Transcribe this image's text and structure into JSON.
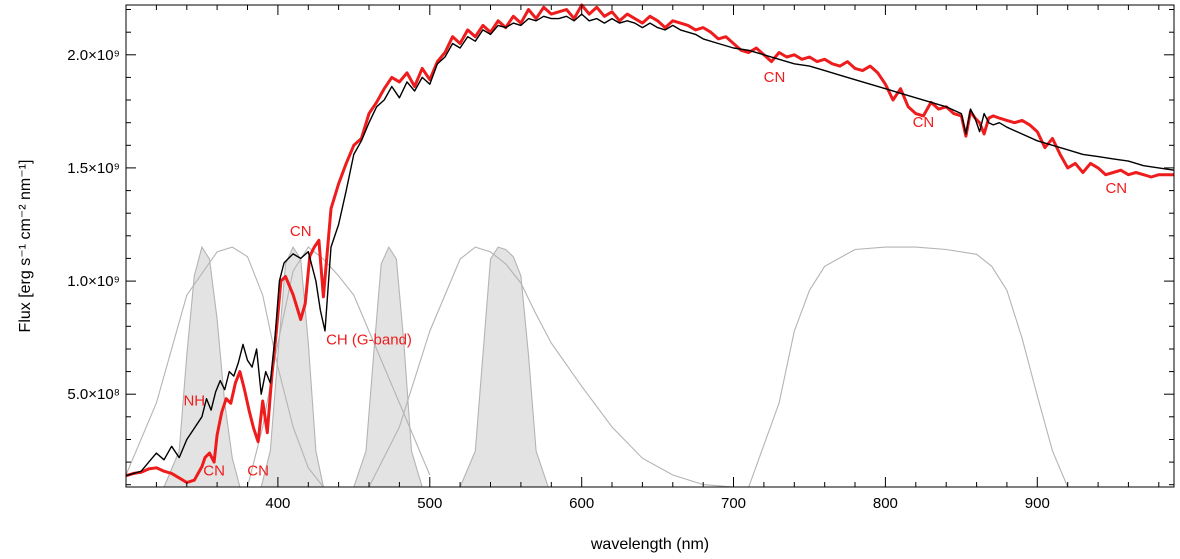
{
  "chart_data": {
    "type": "line",
    "title": "",
    "xlabel": "wavelength (nm)",
    "ylabel": "Flux [erg s⁻¹ cm⁻² nm⁻¹]",
    "xlim": [
      300,
      990
    ],
    "ylim": [
      90000000,
      2220000000
    ],
    "grid": false,
    "xticks": [
      {
        "value": 400,
        "label": "400"
      },
      {
        "value": 500,
        "label": "500"
      },
      {
        "value": 600,
        "label": "600"
      },
      {
        "value": 700,
        "label": "700"
      },
      {
        "value": 800,
        "label": "800"
      },
      {
        "value": 900,
        "label": "900"
      }
    ],
    "yticks": [
      {
        "value": 500000000,
        "label": "5.0×10⁸"
      },
      {
        "value": 1000000000,
        "label": "1.0×10⁹"
      },
      {
        "value": 1500000000,
        "label": "1.5×10⁹"
      },
      {
        "value": 2000000000,
        "label": "2.0×10⁹"
      }
    ],
    "colors": {
      "red": "#ee1c1c",
      "black": "#000000",
      "filter_line": "#b4b4b4",
      "filter_fill": "#e3e3e3"
    },
    "series": [
      {
        "color": "#ee1c1c",
        "x": [
          300,
          305,
          310,
          315,
          320,
          325,
          330,
          335,
          340,
          345,
          350,
          352,
          355,
          358,
          360,
          363,
          366,
          369,
          372,
          375,
          378,
          381,
          384,
          387,
          390,
          393,
          396,
          399,
          402,
          405,
          410,
          415,
          418,
          421,
          424,
          427,
          430,
          435,
          440,
          445,
          450,
          455,
          460,
          465,
          470,
          475,
          480,
          485,
          490,
          495,
          500,
          505,
          510,
          515,
          520,
          525,
          530,
          535,
          540,
          545,
          550,
          555,
          560,
          565,
          570,
          575,
          580,
          585,
          590,
          595,
          600,
          605,
          610,
          615,
          620,
          625,
          630,
          635,
          640,
          645,
          650,
          655,
          660,
          665,
          670,
          675,
          680,
          685,
          690,
          695,
          700,
          705,
          710,
          715,
          720,
          725,
          730,
          735,
          740,
          745,
          750,
          755,
          760,
          765,
          770,
          775,
          780,
          785,
          790,
          795,
          800,
          805,
          810,
          815,
          820,
          825,
          830,
          835,
          840,
          845,
          850,
          853,
          856,
          859,
          862,
          865,
          868,
          871,
          875,
          880,
          885,
          890,
          895,
          900,
          905,
          910,
          915,
          920,
          925,
          930,
          935,
          940,
          945,
          950,
          955,
          960,
          965,
          970,
          975,
          980,
          985,
          990
        ],
        "y": [
          140000000,
          150000000,
          155000000,
          170000000,
          175000000,
          160000000,
          150000000,
          130000000,
          110000000,
          120000000,
          180000000,
          220000000,
          240000000,
          200000000,
          320000000,
          420000000,
          480000000,
          460000000,
          550000000,
          600000000,
          520000000,
          430000000,
          350000000,
          290000000,
          470000000,
          330000000,
          580000000,
          780000000,
          1000000000,
          1020000000,
          940000000,
          830000000,
          900000000,
          1110000000,
          1150000000,
          1180000000,
          930000000,
          1320000000,
          1430000000,
          1520000000,
          1600000000,
          1630000000,
          1740000000,
          1790000000,
          1850000000,
          1900000000,
          1880000000,
          1920000000,
          1860000000,
          1940000000,
          1890000000,
          1970000000,
          2010000000,
          2080000000,
          2050000000,
          2110000000,
          2080000000,
          2130000000,
          2100000000,
          2150000000,
          2120000000,
          2170000000,
          2140000000,
          2200000000,
          2160000000,
          2210000000,
          2180000000,
          2190000000,
          2200000000,
          2160000000,
          2220000000,
          2180000000,
          2210000000,
          2170000000,
          2190000000,
          2150000000,
          2180000000,
          2160000000,
          2140000000,
          2170000000,
          2150000000,
          2120000000,
          2150000000,
          2140000000,
          2130000000,
          2110000000,
          2120000000,
          2100000000,
          2070000000,
          2080000000,
          2050000000,
          2020000000,
          2010000000,
          2030000000,
          2000000000,
          1970000000,
          2010000000,
          1990000000,
          2000000000,
          1980000000,
          1990000000,
          1970000000,
          1980000000,
          1960000000,
          1950000000,
          1970000000,
          1940000000,
          1930000000,
          1950000000,
          1920000000,
          1870000000,
          1800000000,
          1850000000,
          1770000000,
          1740000000,
          1730000000,
          1790000000,
          1760000000,
          1770000000,
          1740000000,
          1730000000,
          1640000000,
          1750000000,
          1720000000,
          1700000000,
          1650000000,
          1720000000,
          1730000000,
          1720000000,
          1710000000,
          1700000000,
          1710000000,
          1690000000,
          1660000000,
          1590000000,
          1630000000,
          1560000000,
          1500000000,
          1520000000,
          1480000000,
          1520000000,
          1500000000,
          1470000000,
          1480000000,
          1490000000,
          1470000000,
          1480000000,
          1470000000,
          1460000000,
          1470000000,
          1470000000,
          1470000000
        ]
      },
      {
        "color": "#000000",
        "x": [
          300,
          305,
          310,
          315,
          320,
          325,
          330,
          335,
          340,
          345,
          350,
          353,
          356,
          359,
          362,
          365,
          368,
          371,
          374,
          377,
          380,
          383,
          386,
          389,
          392,
          395,
          398,
          401,
          404,
          407,
          410,
          415,
          420,
          425,
          428,
          431,
          435,
          440,
          445,
          450,
          455,
          460,
          465,
          470,
          475,
          480,
          485,
          490,
          495,
          500,
          505,
          510,
          515,
          520,
          525,
          530,
          535,
          540,
          545,
          550,
          555,
          560,
          565,
          570,
          575,
          580,
          585,
          590,
          595,
          600,
          605,
          610,
          615,
          620,
          625,
          630,
          635,
          640,
          645,
          650,
          655,
          660,
          665,
          670,
          675,
          680,
          690,
          700,
          710,
          720,
          730,
          740,
          750,
          760,
          770,
          780,
          790,
          800,
          810,
          820,
          830,
          840,
          850,
          853,
          856,
          859,
          862,
          865,
          868,
          871,
          875,
          880,
          890,
          900,
          910,
          920,
          930,
          940,
          950,
          960,
          970,
          980,
          990
        ],
        "y": [
          140000000,
          150000000,
          160000000,
          200000000,
          240000000,
          210000000,
          270000000,
          220000000,
          300000000,
          350000000,
          400000000,
          480000000,
          430000000,
          510000000,
          560000000,
          520000000,
          600000000,
          580000000,
          640000000,
          720000000,
          650000000,
          620000000,
          700000000,
          500000000,
          600000000,
          550000000,
          740000000,
          1000000000,
          1080000000,
          1100000000,
          1120000000,
          1100000000,
          1130000000,
          1000000000,
          870000000,
          780000000,
          1150000000,
          1250000000,
          1400000000,
          1560000000,
          1620000000,
          1700000000,
          1770000000,
          1800000000,
          1860000000,
          1810000000,
          1880000000,
          1840000000,
          1900000000,
          1870000000,
          1960000000,
          1990000000,
          2050000000,
          2030000000,
          2080000000,
          2060000000,
          2110000000,
          2090000000,
          2130000000,
          2120000000,
          2140000000,
          2130000000,
          2160000000,
          2150000000,
          2170000000,
          2160000000,
          2160000000,
          2170000000,
          2150000000,
          2180000000,
          2150000000,
          2160000000,
          2140000000,
          2160000000,
          2140000000,
          2150000000,
          2140000000,
          2120000000,
          2140000000,
          2120000000,
          2110000000,
          2130000000,
          2110000000,
          2100000000,
          2090000000,
          2070000000,
          2050000000,
          2030000000,
          2020000000,
          2000000000,
          1980000000,
          1960000000,
          1950000000,
          1930000000,
          1910000000,
          1890000000,
          1870000000,
          1850000000,
          1830000000,
          1810000000,
          1790000000,
          1770000000,
          1740000000,
          1650000000,
          1760000000,
          1720000000,
          1660000000,
          1740000000,
          1700000000,
          1690000000,
          1700000000,
          1680000000,
          1650000000,
          1620000000,
          1600000000,
          1580000000,
          1560000000,
          1550000000,
          1540000000,
          1530000000,
          1510000000,
          1500000000,
          1490000000
        ]
      }
    ],
    "filters": [
      {
        "fill": true,
        "x": [
          325,
          335,
          340,
          345,
          350,
          355,
          360,
          365,
          370,
          375
        ],
        "y": [
          0.0,
          0.15,
          0.55,
          0.88,
          1.0,
          0.95,
          0.7,
          0.35,
          0.12,
          0.0
        ]
      },
      {
        "fill": true,
        "x": [
          389,
          395,
          400,
          405,
          410,
          415,
          420,
          425,
          430
        ],
        "y": [
          0.0,
          0.15,
          0.55,
          0.93,
          1.0,
          0.95,
          0.6,
          0.15,
          0.0
        ]
      },
      {
        "fill": true,
        "x": [
          450,
          458,
          463,
          468,
          473,
          478,
          483,
          488,
          495
        ],
        "y": [
          0.0,
          0.15,
          0.55,
          0.93,
          1.0,
          0.95,
          0.6,
          0.15,
          0.0
        ]
      },
      {
        "fill": true,
        "x": [
          520,
          530,
          535,
          540,
          545,
          550,
          555,
          560,
          565,
          570,
          578
        ],
        "y": [
          0.0,
          0.15,
          0.55,
          0.95,
          1.0,
          0.99,
          0.96,
          0.88,
          0.55,
          0.15,
          0.0
        ]
      },
      {
        "fill": false,
        "x": [
          300,
          320,
          340,
          360,
          370,
          380,
          390,
          400,
          410,
          420,
          430
        ],
        "y": [
          0.05,
          0.35,
          0.8,
          0.98,
          1.0,
          0.96,
          0.8,
          0.5,
          0.25,
          0.08,
          0.0
        ]
      },
      {
        "fill": false,
        "x": [
          380,
          390,
          400,
          410,
          420,
          430,
          440,
          450,
          460,
          470,
          480,
          490,
          500
        ],
        "y": [
          0.0,
          0.25,
          0.6,
          0.9,
          1.0,
          0.95,
          0.88,
          0.8,
          0.65,
          0.5,
          0.35,
          0.2,
          0.05
        ]
      },
      {
        "fill": false,
        "x": [
          460,
          480,
          500,
          520,
          530,
          540,
          550,
          560,
          570,
          580,
          600,
          620,
          640,
          660,
          680,
          700
        ],
        "y": [
          0.0,
          0.25,
          0.65,
          0.95,
          1.0,
          0.98,
          0.93,
          0.85,
          0.72,
          0.6,
          0.42,
          0.25,
          0.12,
          0.05,
          0.01,
          0.0
        ]
      },
      {
        "fill": false,
        "x": [
          710,
          730,
          740,
          750,
          760,
          780,
          800,
          820,
          840,
          860,
          870,
          880,
          890,
          900,
          910,
          920
        ],
        "y": [
          0.0,
          0.35,
          0.65,
          0.82,
          0.92,
          0.99,
          1.0,
          1.0,
          0.99,
          0.97,
          0.92,
          0.82,
          0.62,
          0.38,
          0.15,
          0.0
        ]
      }
    ],
    "filter_peak": 1150000000,
    "annotations": [
      {
        "text": "NH",
        "x": 345,
        "y": 450000000
      },
      {
        "text": "CN",
        "x": 358,
        "y": 140000000
      },
      {
        "text": "CN",
        "x": 387,
        "y": 140000000
      },
      {
        "text": "CN",
        "x": 415,
        "y": 1200000000
      },
      {
        "text": "CH (G-band)",
        "x": 460,
        "y": 720000000
      },
      {
        "text": "CN",
        "x": 727,
        "y": 1880000000
      },
      {
        "text": "CN",
        "x": 825,
        "y": 1680000000
      },
      {
        "text": "CN",
        "x": 952,
        "y": 1390000000
      }
    ]
  }
}
